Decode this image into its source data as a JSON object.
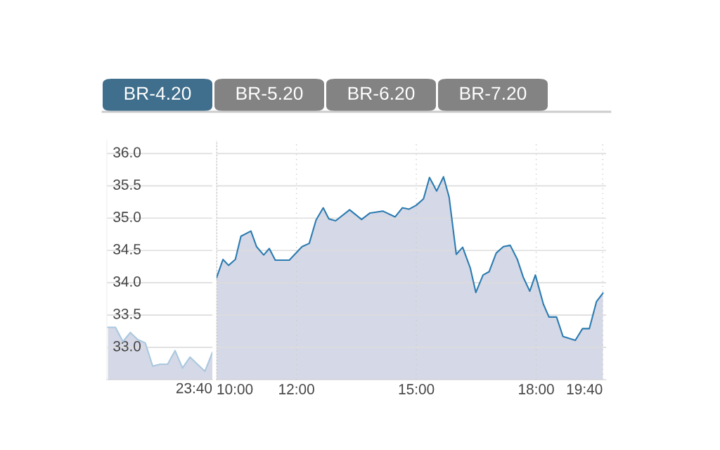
{
  "chart_data": [
    {
      "type": "area",
      "annotations": [
        "BR-4.20",
        "BR-5.20",
        "BR-6.20",
        "BR-7.20",
        "23:40"
      ],
      "categories": [
        null,
        null,
        null,
        null,
        null,
        null,
        null,
        null,
        null,
        null,
        null,
        null,
        null,
        null,
        null
      ],
      "series": [
        {
          "color": "#a9c8df",
          "values": [
            33.31,
            33.31,
            33.09,
            33.23,
            33.12,
            33.07,
            32.71,
            32.74,
            32.74,
            32.95,
            32.68,
            32.85,
            32.74,
            32.63,
            32.92
          ]
        }
      ],
      "ylim": [
        32.5,
        36.2
      ],
      "yticks": [
        {
          "value": 33,
          "label": "33.0"
        },
        {
          "value": 33.5,
          "label": "33.5"
        },
        {
          "value": 34,
          "label": "34.0"
        },
        {
          "value": 34.5,
          "label": "34.5"
        },
        {
          "value": 35,
          "label": "35.0"
        },
        {
          "value": 35.5,
          "label": "35.5"
        },
        {
          "value": 36,
          "label": "36.0"
        }
      ],
      "grid": true,
      "legend": false
    },
    {
      "type": "area",
      "series": [
        {
          "color": "#2b7bb0",
          "x": [
            10.0,
            10.16,
            10.3,
            10.47,
            10.61,
            10.86,
            11.0,
            11.18,
            11.32,
            11.47,
            11.82,
            12.14,
            12.32,
            12.49,
            12.67,
            12.81,
            12.98,
            13.33,
            13.63,
            13.84,
            14.16,
            14.47,
            14.65,
            14.82,
            15.0,
            15.18,
            15.33,
            15.51,
            15.68,
            15.82,
            16.0,
            16.16,
            16.35,
            16.49,
            16.67,
            16.82,
            17.0,
            17.18,
            17.35,
            17.53,
            17.68,
            17.84,
            17.98,
            18.18,
            18.32,
            18.51,
            18.67,
            18.98,
            19.16,
            19.33,
            19.51,
            19.67
          ],
          "values": [
            34.08,
            34.36,
            34.27,
            34.36,
            34.72,
            34.8,
            34.56,
            34.43,
            34.53,
            34.35,
            34.35,
            34.56,
            34.61,
            34.97,
            35.16,
            34.99,
            34.96,
            35.13,
            34.98,
            35.08,
            35.11,
            35.02,
            35.16,
            35.14,
            35.2,
            35.3,
            35.63,
            35.42,
            35.64,
            35.33,
            34.44,
            34.55,
            34.23,
            33.85,
            34.12,
            34.17,
            34.46,
            34.56,
            34.58,
            34.36,
            34.08,
            33.87,
            34.12,
            33.67,
            33.47,
            33.47,
            33.17,
            33.11,
            33.29,
            33.29,
            33.71,
            33.84
          ]
        }
      ],
      "xlim": [
        10.0,
        19.75
      ],
      "xticks": [
        {
          "value": 10,
          "label": "10:00"
        },
        {
          "value": 12,
          "label": "12:00"
        },
        {
          "value": 15,
          "label": "15:00"
        },
        {
          "value": 18,
          "label": "18:00"
        },
        {
          "value": 19.667,
          "label": "19:40"
        }
      ],
      "ylim": [
        32.5,
        36.2
      ],
      "yticks": [
        33,
        33.5,
        34,
        34.5,
        35,
        35.5,
        36
      ],
      "tick_labels": "x",
      "ref_lines": [
        {
          "axis": "x",
          "value": 10,
          "color": "#555555",
          "line_style": "dotted"
        }
      ],
      "grid": true,
      "legend": false
    }
  ]
}
